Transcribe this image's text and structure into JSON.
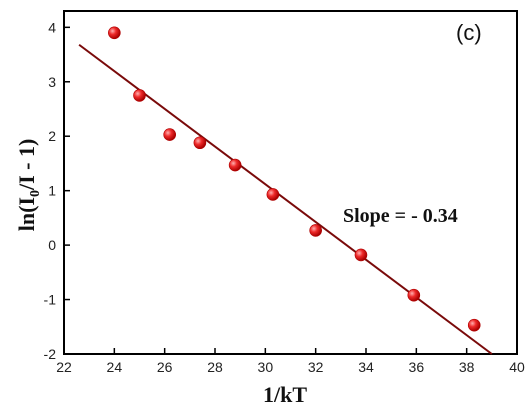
{
  "chart_data": {
    "type": "scatter",
    "panel_label": "(c)",
    "xlabel": "1/kT",
    "ylabel": "ln(I0/I - 1)",
    "ylabel_parts": {
      "prefix": "ln(I",
      "subscript": "0",
      "suffix": "/I - 1)"
    },
    "xlim": [
      22,
      40
    ],
    "ylim": [
      -2,
      4.3
    ],
    "xticks": [
      "22",
      "24",
      "26",
      "28",
      "30",
      "32",
      "34",
      "36",
      "38",
      "40"
    ],
    "yticks": [
      "-2",
      "-1",
      "0",
      "1",
      "2",
      "3",
      "4"
    ],
    "points": {
      "x": [
        24.0,
        25.0,
        26.2,
        27.4,
        28.8,
        30.3,
        32.0,
        33.8,
        35.9,
        38.3
      ],
      "y": [
        3.9,
        2.75,
        2.03,
        1.88,
        1.47,
        0.93,
        0.27,
        -0.18,
        -0.92,
        -1.47
      ]
    },
    "fit_line": {
      "x": [
        22.6,
        39.0
      ],
      "y": [
        3.68,
        -2.0
      ]
    },
    "annotation": "Slope = - 0.34",
    "colors": {
      "points": "#e02020",
      "fit_line": "#7a0a0a",
      "axis": "#000000"
    }
  }
}
